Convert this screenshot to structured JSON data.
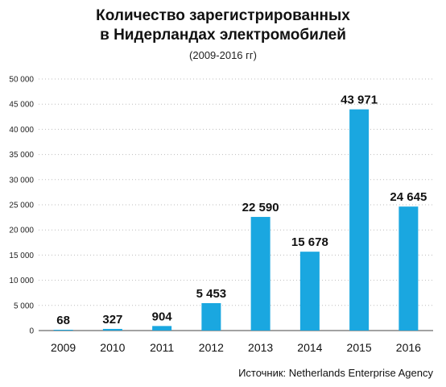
{
  "chart_data": {
    "type": "bar",
    "title_line1": "Количество зарегистрированных",
    "title_line2": "в Нидерландах электромобилей",
    "subtitle": "(2009-2016 гг)",
    "categories": [
      "2009",
      "2010",
      "2011",
      "2012",
      "2013",
      "2014",
      "2015",
      "2016"
    ],
    "values": [
      68,
      327,
      904,
      5453,
      22590,
      15678,
      43971,
      24645
    ],
    "value_labels": [
      "68",
      "327",
      "904",
      "5 453",
      "22 590",
      "15 678",
      "43 971",
      "24 645"
    ],
    "yticks": [
      0,
      5000,
      10000,
      15000,
      20000,
      25000,
      30000,
      35000,
      40000,
      45000,
      50000
    ],
    "ytick_labels": [
      "0",
      "5 000",
      "10 000",
      "15 000",
      "20 000",
      "25 000",
      "30 000",
      "35 000",
      "40 000",
      "45 000",
      "50 000"
    ],
    "ylim": [
      0,
      50000
    ],
    "grid": "horizontal-dotted",
    "bar_color": "#1aa7e0",
    "xlabel": "",
    "ylabel": ""
  },
  "source": "Источник: Netherlands Enterprise Agency"
}
